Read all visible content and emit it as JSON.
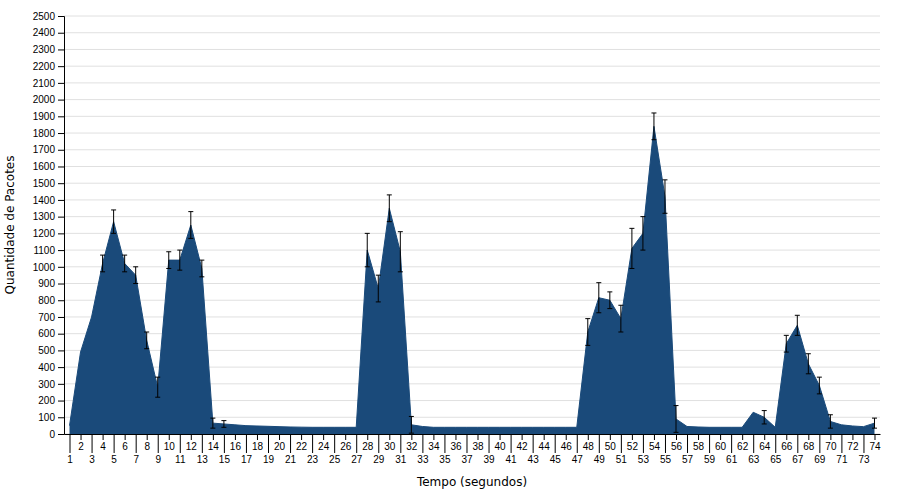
{
  "chart_data": {
    "type": "area",
    "xlabel": "Tempo (segundos)",
    "ylabel": "Quantidade de Pacotes",
    "color": "#1a4a7a",
    "grid": true,
    "xlim": [
      0.5,
      74.5
    ],
    "xticks": [
      1,
      2,
      3,
      4,
      5,
      6,
      7,
      8,
      9,
      10,
      11,
      12,
      13,
      14,
      15,
      16,
      17,
      18,
      19,
      20,
      21,
      22,
      23,
      24,
      25,
      26,
      27,
      28,
      29,
      30,
      31,
      32,
      33,
      34,
      35,
      36,
      37,
      38,
      39,
      40,
      41,
      42,
      43,
      44,
      45,
      46,
      47,
      48,
      49,
      50,
      51,
      52,
      53,
      54,
      55,
      56,
      57,
      58,
      59,
      60,
      61,
      62,
      63,
      64,
      65,
      66,
      67,
      68,
      69,
      70,
      71,
      72,
      73,
      74
    ],
    "ylim": [
      0,
      2500
    ],
    "yticks": [
      0,
      100,
      200,
      300,
      400,
      500,
      600,
      700,
      800,
      900,
      1000,
      1100,
      1200,
      1300,
      1400,
      1500,
      1600,
      1700,
      1800,
      1900,
      2000,
      2100,
      2200,
      2300,
      2400,
      2500
    ],
    "x": [
      1,
      2,
      3,
      4,
      5,
      6,
      7,
      8,
      9,
      10,
      11,
      12,
      13,
      14,
      15,
      16,
      17,
      18,
      19,
      20,
      21,
      22,
      23,
      24,
      25,
      26,
      27,
      28,
      29,
      30,
      31,
      32,
      33,
      34,
      35,
      36,
      37,
      38,
      39,
      40,
      41,
      42,
      43,
      44,
      45,
      46,
      47,
      48,
      49,
      50,
      51,
      52,
      53,
      54,
      55,
      56,
      57,
      58,
      59,
      60,
      61,
      62,
      63,
      64,
      65,
      66,
      67,
      68,
      69,
      70,
      71,
      72,
      73,
      74
    ],
    "values": [
      50,
      490,
      700,
      1020,
      1270,
      1020,
      950,
      560,
      280,
      1040,
      1040,
      1250,
      990,
      65,
      60,
      55,
      50,
      48,
      46,
      44,
      42,
      41,
      40,
      40,
      40,
      40,
      40,
      1100,
      870,
      1350,
      1090,
      55,
      45,
      40,
      40,
      40,
      40,
      40,
      40,
      40,
      40,
      40,
      40,
      40,
      40,
      40,
      40,
      610,
      815,
      800,
      690,
      1110,
      1200,
      1840,
      1420,
      90,
      45,
      42,
      40,
      40,
      40,
      40,
      130,
      100,
      40,
      540,
      650,
      420,
      290,
      75,
      55,
      48,
      44,
      65
    ],
    "errors": [
      0,
      0,
      0,
      50,
      70,
      50,
      50,
      50,
      60,
      50,
      60,
      80,
      50,
      30,
      20,
      0,
      0,
      0,
      0,
      0,
      0,
      0,
      0,
      0,
      0,
      0,
      0,
      100,
      80,
      80,
      120,
      50,
      0,
      0,
      0,
      0,
      0,
      0,
      0,
      0,
      0,
      0,
      0,
      0,
      0,
      0,
      0,
      80,
      90,
      50,
      80,
      120,
      100,
      80,
      100,
      80,
      0,
      0,
      0,
      0,
      0,
      0,
      0,
      40,
      0,
      50,
      60,
      60,
      50,
      40,
      0,
      0,
      0,
      30
    ]
  }
}
